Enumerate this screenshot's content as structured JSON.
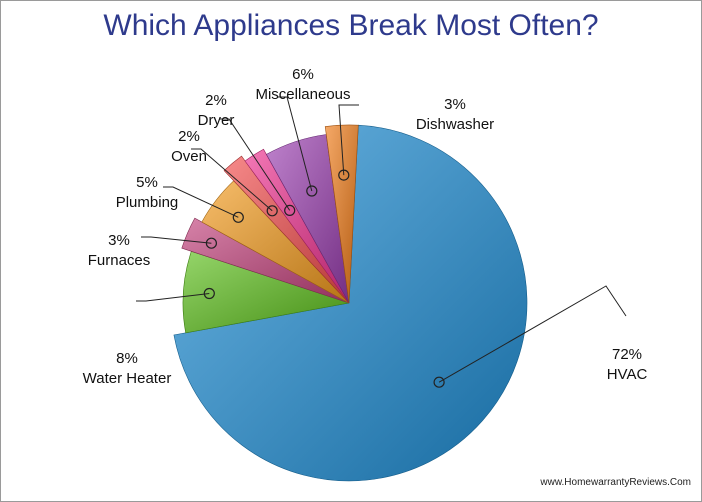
{
  "chart_data": {
    "type": "pie",
    "title": "Which Appliances Break Most Often?",
    "slices": [
      {
        "label": "HVAC",
        "value": 72,
        "value_label": "72%",
        "color": "#1f8fd6"
      },
      {
        "label": "Water Heater",
        "value": 8,
        "value_label": "8%",
        "color": "#5cbf1a"
      },
      {
        "label": "Furnaces",
        "value": 3,
        "value_label": "3%",
        "color": "#c2407a"
      },
      {
        "label": "Plumbing",
        "value": 5,
        "value_label": "5%",
        "color": "#f39a1c"
      },
      {
        "label": "Oven",
        "value": 2,
        "value_label": "2%",
        "color": "#f24b4b"
      },
      {
        "label": "Dryer",
        "value": 2,
        "value_label": "2%",
        "color": "#ee2f8f"
      },
      {
        "label": "Miscellaneous",
        "value": 6,
        "value_label": "6%",
        "color": "#9b3fb0"
      },
      {
        "label": "Dishwasher",
        "value": 3,
        "value_label": "3%",
        "color": "#f07a16"
      }
    ]
  },
  "credit": "www.HomewarrantyReviews.Com"
}
